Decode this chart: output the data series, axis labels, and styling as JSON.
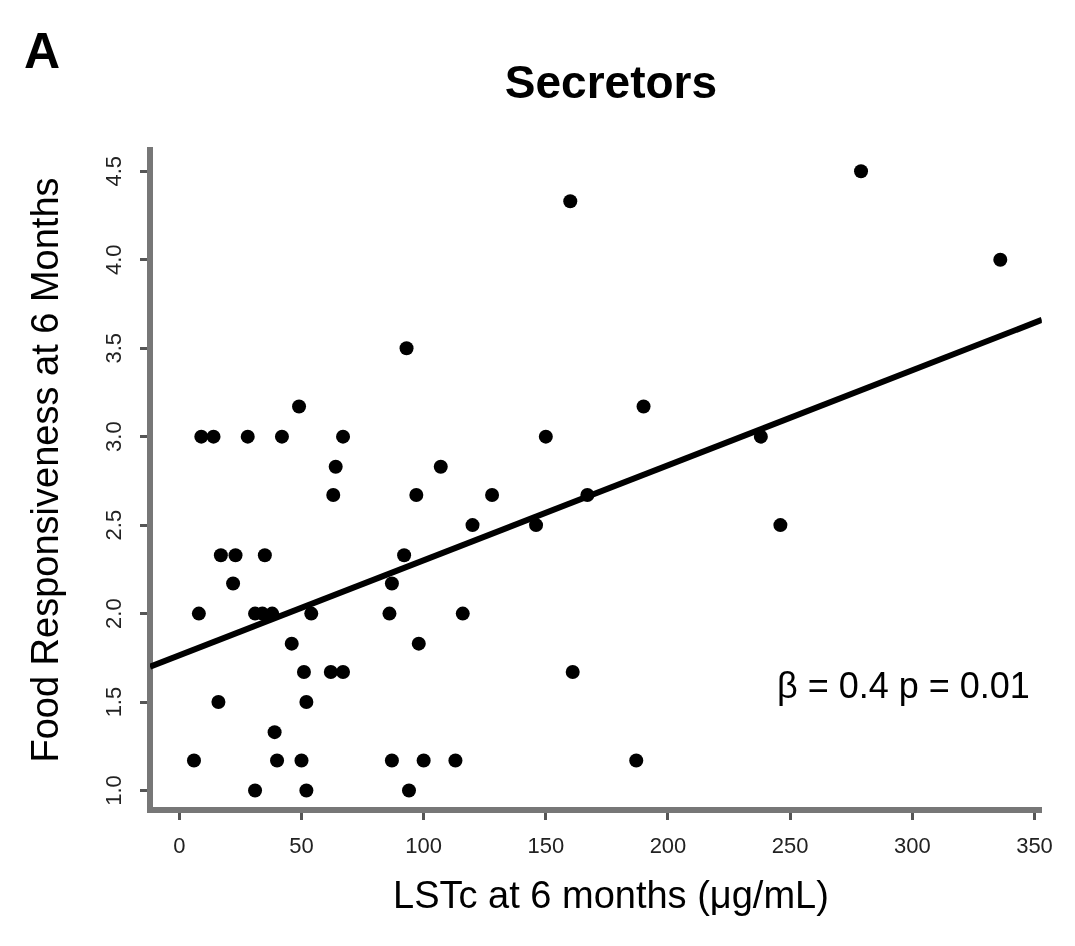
{
  "chart_data": {
    "type": "scatter",
    "title": "Secretors",
    "xlabel": "LSTc at 6 months (μg/mL)",
    "ylabel": "Food Responsiveness at 6 Months",
    "annotations": [
      "A",
      "β = 0.4 p = 0.01"
    ],
    "xlim": [
      -12,
      353
    ],
    "xticks": [
      0,
      50,
      100,
      150,
      200,
      250,
      300,
      350
    ],
    "ylim": [
      0.89,
      4.62
    ],
    "yticks": [
      {
        "value": 1,
        "label": "1.0"
      },
      {
        "value": 1.5,
        "label": "1.5"
      },
      {
        "value": 2,
        "label": "2.0"
      },
      {
        "value": 2.5,
        "label": "2.5"
      },
      {
        "value": 3,
        "label": "3.0"
      },
      {
        "value": 3.5,
        "label": "3.5"
      },
      {
        "value": 4,
        "label": "4.0"
      },
      {
        "value": 4.5,
        "label": "4.5"
      }
    ],
    "grid": false,
    "legend": false,
    "marker": "circle",
    "series": [
      {
        "type": "scatter",
        "color": "#000000",
        "x": [
          6,
          40,
          50,
          87,
          100,
          113,
          187,
          31,
          52,
          94,
          39,
          16,
          52,
          51,
          62,
          67,
          161,
          46,
          98,
          8,
          31,
          34,
          38,
          54,
          86,
          116,
          22,
          87,
          17,
          23,
          35,
          92,
          120,
          146,
          246,
          63,
          97,
          128,
          167,
          64,
          107,
          9,
          14,
          28,
          42,
          67,
          150,
          238,
          49,
          190,
          93,
          160,
          279,
          336
        ],
        "values": [
          1.17,
          1.17,
          1.17,
          1.17,
          1.17,
          1.17,
          1.17,
          1.0,
          1.0,
          1.0,
          1.33,
          1.5,
          1.5,
          1.67,
          1.67,
          1.67,
          1.67,
          1.83,
          1.83,
          2.0,
          2.0,
          2.0,
          2.0,
          2.0,
          2.0,
          2.0,
          2.17,
          2.17,
          2.33,
          2.33,
          2.33,
          2.33,
          2.5,
          2.5,
          2.5,
          2.67,
          2.67,
          2.67,
          2.67,
          2.83,
          2.83,
          3.0,
          3.0,
          3.0,
          3.0,
          3.0,
          3.0,
          3.0,
          3.17,
          3.17,
          3.5,
          4.33,
          4.5,
          4.0
        ]
      },
      {
        "type": "line",
        "color": "#000000",
        "marker": "none",
        "x": [
          -12,
          353
        ],
        "values": [
          1.7,
          3.66
        ]
      }
    ]
  }
}
